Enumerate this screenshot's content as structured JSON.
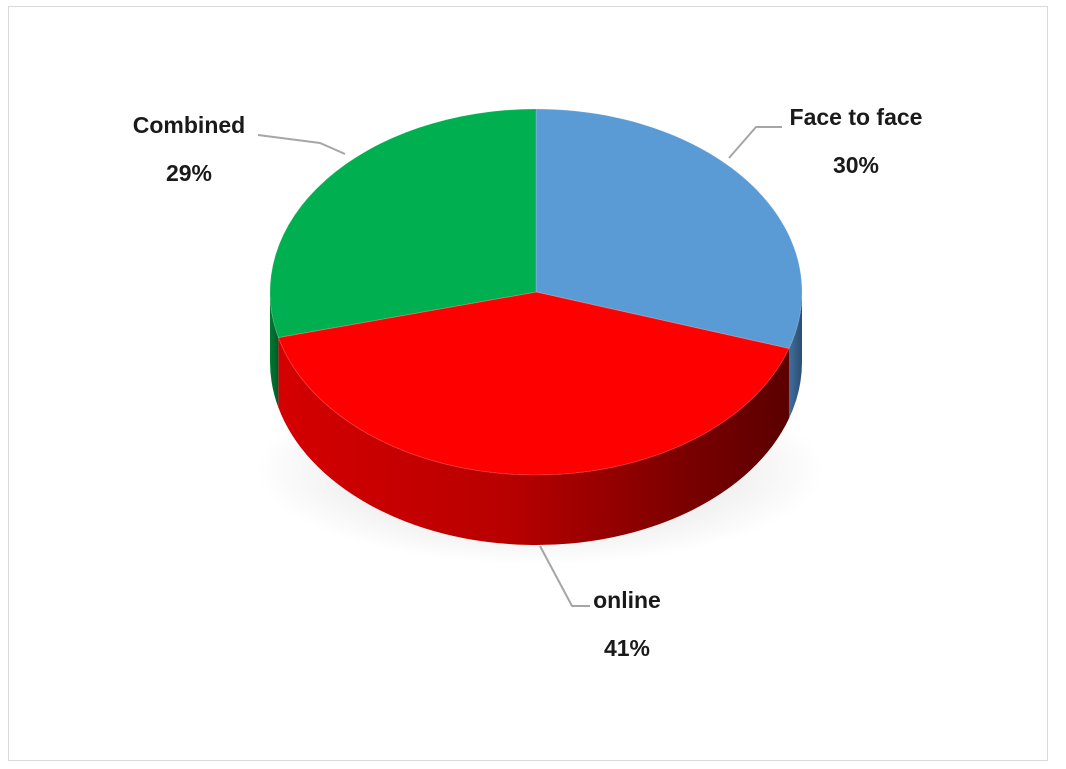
{
  "chart_data": {
    "type": "pie",
    "style": "3d",
    "title": "",
    "slices": [
      {
        "label": "Face to face",
        "value": 30,
        "percent_label": "30%",
        "color": "#5b9bd5"
      },
      {
        "label": "online",
        "value": 41,
        "percent_label": "41%",
        "color": "#ff0000"
      },
      {
        "label": "Combined",
        "value": 29,
        "percent_label": "29%",
        "color": "#00b050"
      }
    ],
    "legend": "none",
    "data_labels": "outside with leader lines"
  }
}
